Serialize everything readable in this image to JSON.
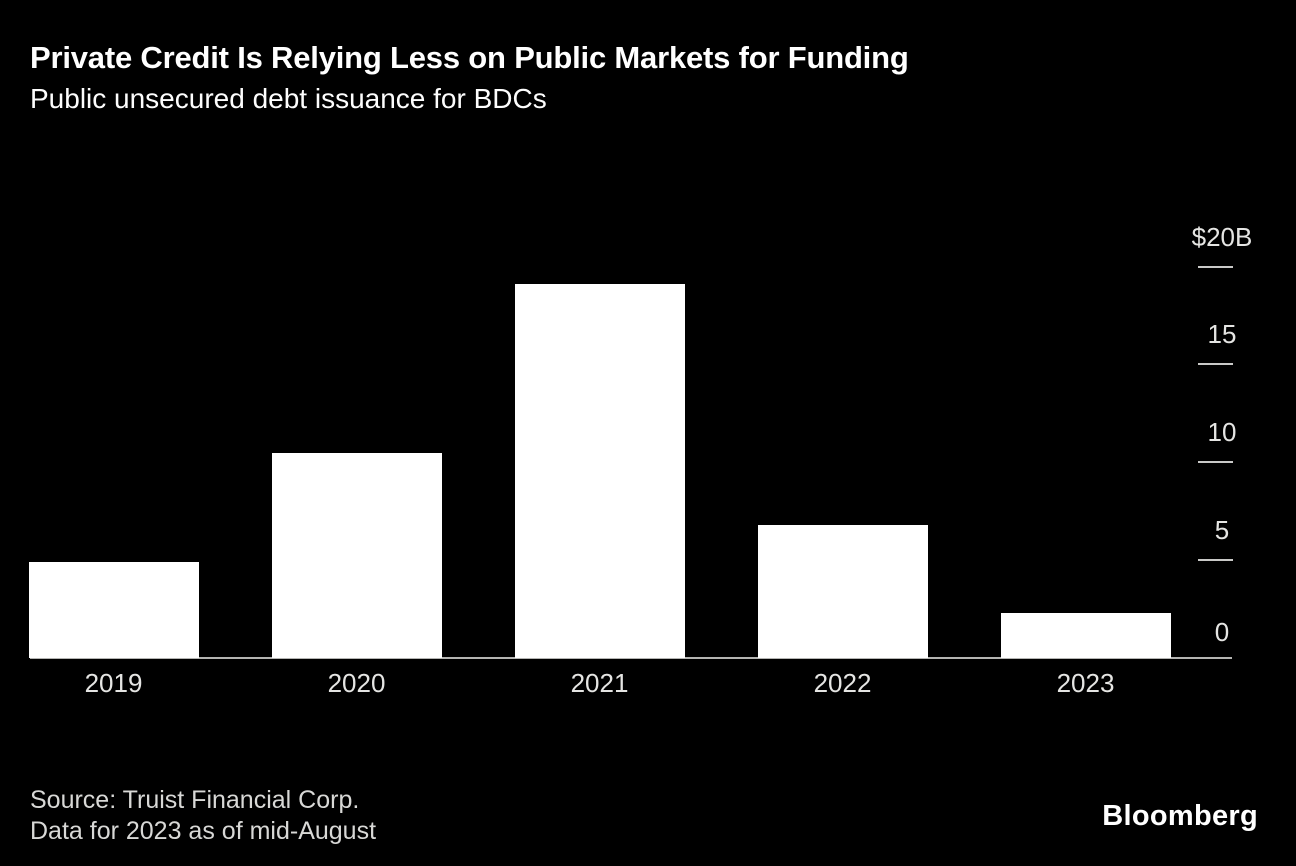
{
  "header": {
    "title": "Private Credit Is Relying Less on Public Markets for Funding",
    "subtitle": "Public unsecured debt issuance for BDCs"
  },
  "chart_data": {
    "type": "bar",
    "title": "Private Credit Is Relying Less on Public Markets for Funding",
    "subtitle": "Public unsecured debt issuance for BDCs",
    "categories": [
      "2019",
      "2020",
      "2021",
      "2022",
      "2023"
    ],
    "values": [
      4.9,
      10.5,
      19.1,
      6.8,
      2.3
    ],
    "xlabel": "",
    "ylabel": "$B",
    "ylim": [
      0,
      20
    ],
    "yticks": [
      {
        "label": "$20B",
        "value": 20
      },
      {
        "label": "15",
        "value": 15
      },
      {
        "label": "10",
        "value": 10
      },
      {
        "label": "5",
        "value": 5
      },
      {
        "label": "0",
        "value": 0
      }
    ],
    "legend": "none",
    "grid": false,
    "axis_position": "right",
    "bar_color": "#ffffff",
    "background_color": "#000000"
  },
  "footer": {
    "source_line1": "Source: Truist Financial Corp.",
    "source_line2": "Data for 2023 as of mid-August",
    "brand": "Bloomberg"
  },
  "colors": {
    "background": "#000000",
    "bar": "#ffffff",
    "title_text": "#ffffff",
    "axis_line": "#b4b4b2",
    "tick": "#c9c9c7",
    "axis_label_text": "#e5e5e3",
    "source_text": "#d8d8d6",
    "brand_text": "#ffffff"
  }
}
